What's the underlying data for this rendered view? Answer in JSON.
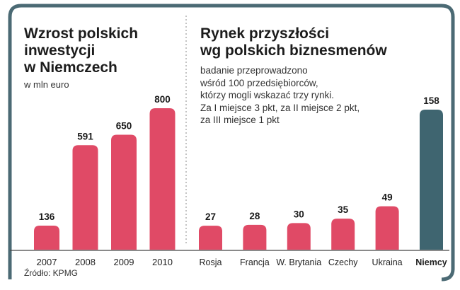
{
  "colors": {
    "bar": "#e04a66",
    "highlight_bar": "#3f6570",
    "frame": "#4b6a74",
    "axis": "#444444",
    "divider": "#8a8a8a"
  },
  "source": "Źródło: KPMG",
  "chart_data": [
    {
      "type": "bar",
      "title_lines": [
        "Wzrost polskich",
        "inwestycji",
        "w Niemczech"
      ],
      "unit": "w mln euro",
      "categories": [
        "2007",
        "2008",
        "2009",
        "2010"
      ],
      "values": [
        136,
        591,
        650,
        800
      ],
      "value_labels": [
        "136",
        "591",
        "650",
        "800"
      ],
      "ylim": [
        0,
        800
      ]
    },
    {
      "type": "bar",
      "title_lines": [
        "Rynek przyszłości",
        "wg polskich biznesmenów"
      ],
      "note_lines": [
        "badanie przeprowadzono",
        "wśród 100 przedsiębiorców,",
        "którzy mogli wskazać trzy rynki.",
        "Za I miejsce 3 pkt, za II miejsce 2 pkt,",
        "za III miejsce 1 pkt"
      ],
      "categories": [
        "Rosja",
        "Francja",
        "W. Brytania",
        "Czechy",
        "Ukraina",
        "Niemcy"
      ],
      "values": [
        27,
        28,
        30,
        35,
        49,
        158
      ],
      "value_labels": [
        "27",
        "28",
        "30",
        "35",
        "49",
        "158"
      ],
      "highlight": "Niemcy",
      "ylim": [
        0,
        158
      ]
    }
  ]
}
